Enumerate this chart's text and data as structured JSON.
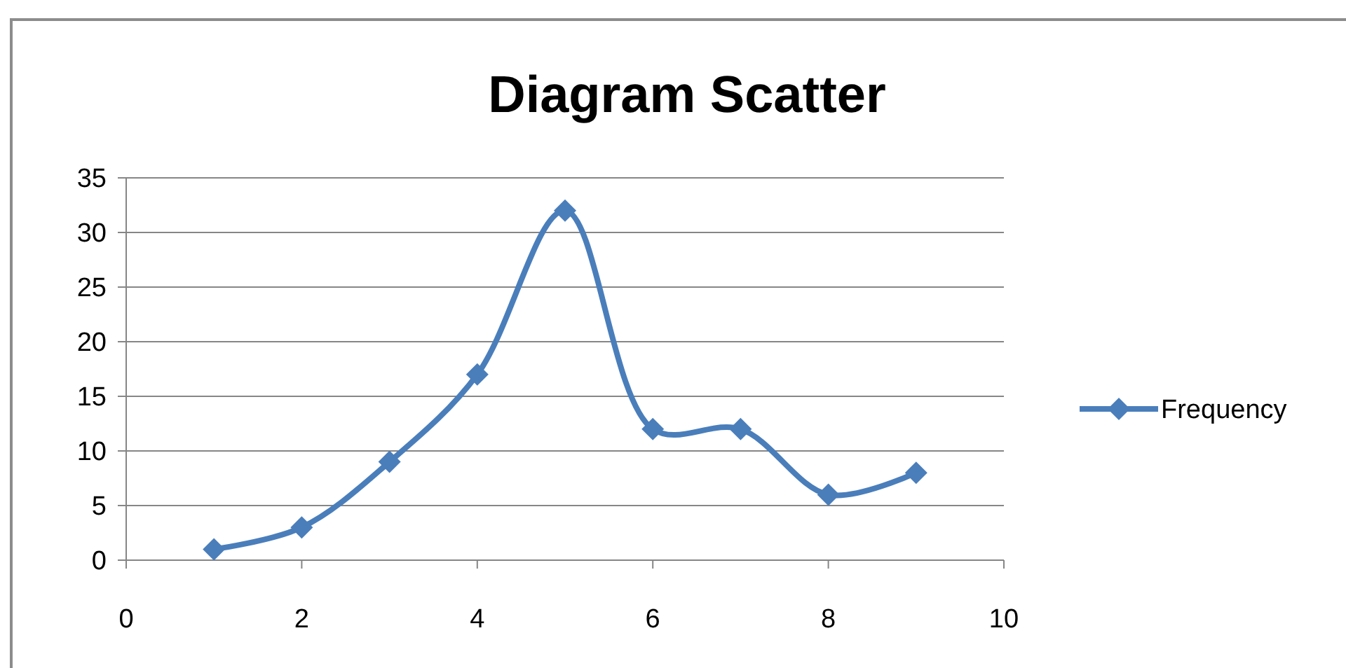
{
  "chart_data": {
    "type": "line",
    "title": "Diagram Scatter",
    "x": [
      1,
      2,
      3,
      4,
      5,
      6,
      7,
      8,
      9
    ],
    "series": [
      {
        "name": "Frequency",
        "color": "#4a7ebb",
        "values": [
          1,
          3,
          9,
          17,
          32,
          12,
          12,
          6,
          8
        ]
      }
    ],
    "xlim": [
      0,
      10
    ],
    "xticks": [
      0,
      2,
      4,
      6,
      8,
      10
    ],
    "ylim": [
      0,
      35
    ],
    "yticks": [
      0,
      5,
      10,
      15,
      20,
      25,
      30,
      35
    ],
    "grid": "y",
    "legend": "right",
    "marker": "diamond",
    "line_style": "solid"
  }
}
